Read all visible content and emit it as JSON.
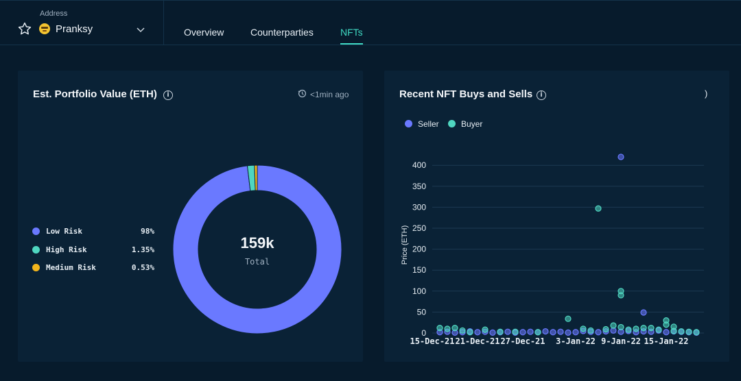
{
  "header": {
    "address_caption": "Address",
    "address_name": "Pranksy",
    "tabs": [
      {
        "label": "Overview",
        "active": false
      },
      {
        "label": "Counterparties",
        "active": false
      },
      {
        "label": "NFTs",
        "active": true
      }
    ]
  },
  "portfolio": {
    "title": "Est. Portfolio Value (ETH)",
    "info_glyph": "i",
    "updated": "<1min ago",
    "total_value": "159k",
    "total_caption": "Total",
    "legend": [
      {
        "label": "Low Risk",
        "pct": "98%",
        "color": "#6a79ff"
      },
      {
        "label": "High Risk",
        "pct": "1.35%",
        "color": "#4fd6c0"
      },
      {
        "label": "Medium Risk",
        "pct": "0.53%",
        "color": "#f2b51c"
      }
    ]
  },
  "nft_trades": {
    "title": "Recent NFT Buys and Sells",
    "info_glyph": "i",
    "corner_glyph": ")",
    "legend": [
      {
        "label": "Seller",
        "color": "#6a79ff"
      },
      {
        "label": "Buyer",
        "color": "#4fd6c0"
      }
    ]
  },
  "chart_data": [
    {
      "type": "pie",
      "categories": [
        "Low Risk",
        "High Risk",
        "Medium Risk"
      ],
      "values": [
        98,
        1.35,
        0.53
      ],
      "center_value": "159k",
      "center_label": "Total",
      "colors": [
        "#6a79ff",
        "#4fd6c0",
        "#f2b51c"
      ]
    },
    {
      "type": "scatter",
      "title": "Recent NFT Buys and Sells",
      "xlabel": "",
      "ylabel": "Price (ETH)",
      "ylim": [
        0,
        420
      ],
      "yticks": [
        0,
        50,
        100,
        150,
        200,
        250,
        300,
        350,
        400
      ],
      "xlim": [
        "2021-12-15",
        "2022-01-20"
      ],
      "xticks": [
        "15-Dec-21",
        "21-Dec-21",
        "27-Dec-21",
        "3-Jan-22",
        "9-Jan-22",
        "15-Jan-22"
      ],
      "xtick_dates": [
        "2021-12-15",
        "2021-12-21",
        "2021-12-27",
        "2022-01-03",
        "2022-01-09",
        "2022-01-15"
      ],
      "grid": true,
      "legend_position": "top-left",
      "series": [
        {
          "name": "Seller",
          "color": "#6a79ff",
          "points": [
            [
              "2022-01-09",
              420
            ],
            [
              "2022-01-12",
              49
            ],
            [
              "2021-12-16",
              2
            ],
            [
              "2021-12-17",
              3
            ],
            [
              "2021-12-18",
              1
            ],
            [
              "2021-12-19",
              2
            ],
            [
              "2021-12-20",
              4
            ],
            [
              "2021-12-21",
              2
            ],
            [
              "2021-12-22",
              3
            ],
            [
              "2021-12-23",
              1
            ],
            [
              "2021-12-24",
              2
            ],
            [
              "2021-12-25",
              3
            ],
            [
              "2021-12-26",
              1
            ],
            [
              "2021-12-27",
              2
            ],
            [
              "2021-12-28",
              3
            ],
            [
              "2021-12-29",
              2
            ],
            [
              "2021-12-30",
              4
            ],
            [
              "2021-12-31",
              2
            ],
            [
              "2022-01-01",
              3
            ],
            [
              "2022-01-02",
              1
            ],
            [
              "2022-01-03",
              2
            ],
            [
              "2022-01-04",
              5
            ],
            [
              "2022-01-05",
              3
            ],
            [
              "2022-01-06",
              2
            ],
            [
              "2022-01-07",
              4
            ],
            [
              "2022-01-08",
              6
            ],
            [
              "2022-01-09",
              3
            ],
            [
              "2022-01-10",
              5
            ],
            [
              "2022-01-11",
              2
            ],
            [
              "2022-01-12",
              4
            ],
            [
              "2022-01-13",
              3
            ],
            [
              "2022-01-14",
              6
            ],
            [
              "2022-01-15",
              2
            ],
            [
              "2022-01-16",
              4
            ],
            [
              "2022-01-17",
              3
            ],
            [
              "2022-01-18",
              2
            ],
            [
              "2022-01-19",
              1
            ]
          ]
        },
        {
          "name": "Buyer",
          "color": "#4fd6c0",
          "points": [
            [
              "2022-01-06",
              297
            ],
            [
              "2022-01-09",
              100
            ],
            [
              "2022-01-09",
              90
            ],
            [
              "2022-01-02",
              34
            ],
            [
              "2022-01-15",
              30
            ],
            [
              "2022-01-15",
              20
            ],
            [
              "2022-01-08",
              18
            ],
            [
              "2022-01-09",
              14
            ],
            [
              "2022-01-12",
              12
            ],
            [
              "2022-01-16",
              15
            ],
            [
              "2021-12-16",
              12
            ],
            [
              "2021-12-17",
              10
            ],
            [
              "2021-12-18",
              12
            ],
            [
              "2021-12-19",
              6
            ],
            [
              "2021-12-22",
              8
            ],
            [
              "2021-12-24",
              3
            ],
            [
              "2021-12-29",
              2
            ],
            [
              "2022-01-04",
              10
            ],
            [
              "2022-01-05",
              6
            ],
            [
              "2022-01-07",
              9
            ],
            [
              "2022-01-10",
              8
            ],
            [
              "2022-01-11",
              10
            ],
            [
              "2022-01-13",
              12
            ],
            [
              "2022-01-14",
              8
            ],
            [
              "2022-01-16",
              5
            ],
            [
              "2022-01-17",
              4
            ],
            [
              "2022-01-18",
              3
            ],
            [
              "2022-01-19",
              2
            ],
            [
              "2021-12-20",
              2
            ],
            [
              "2021-12-26",
              3
            ]
          ]
        }
      ]
    }
  ]
}
